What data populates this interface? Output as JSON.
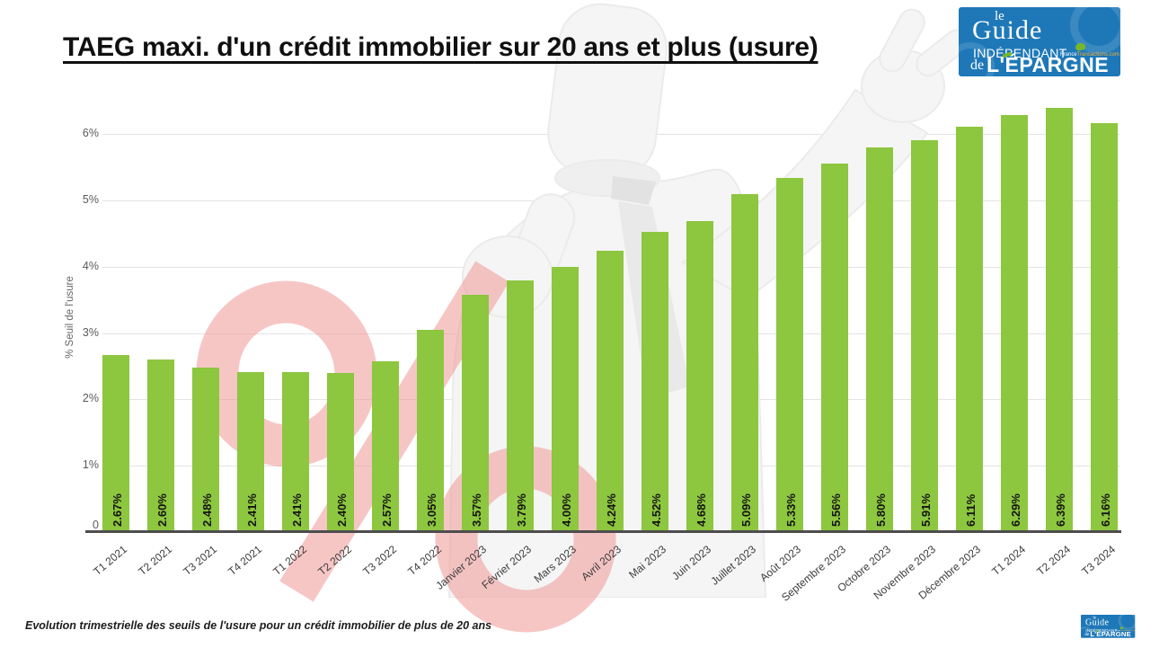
{
  "page": {
    "title": "TAEG maxi. d'un crédit immobilier sur 20 ans et plus (usure)",
    "footer_note": "Evolution trimestrielle des seuils de l'usure pour un crédit immobilier de plus de 20 ans"
  },
  "logo": {
    "le": "le",
    "guide": "Guide",
    "independant": "INDÉPENDANT",
    "site_white": "France",
    "site_orange": "Transactions.com",
    "de": "de",
    "epargne": "L'ÉPARGNE"
  },
  "chart_data": {
    "type": "bar",
    "title": "TAEG maxi. d'un crédit immobilier sur 20 ans et plus (usure)",
    "xlabel": "",
    "ylabel": "% Seuil de l'usure",
    "categories": [
      "T1 2021",
      "T2 2021",
      "T3 2021",
      "T4 2021",
      "T1 2022",
      "T2 2022",
      "T3 2022",
      "T4 2022",
      "Janvier 2023",
      "Février 2023",
      "Mars 2023",
      "Avril 2023",
      "Mai 2023",
      "Juin 2023",
      "Juillet 2023",
      "Août 2023",
      "Septembre 2023",
      "Octobre 2023",
      "Novembre 2023",
      "Décembre 2023",
      "T1 2024",
      "T2 2024",
      "T3 2024"
    ],
    "values": [
      2.67,
      2.6,
      2.48,
      2.41,
      2.41,
      2.4,
      2.57,
      3.05,
      3.57,
      3.79,
      4.0,
      4.24,
      4.52,
      4.68,
      5.09,
      5.33,
      5.56,
      5.8,
      5.91,
      6.11,
      6.29,
      6.39,
      6.16
    ],
    "bar_labels": [
      "2.67%",
      "2.60%",
      "2.48%",
      "2.41%",
      "2.41%",
      "2.40%",
      "2.57%",
      "3.05%",
      "3.57%",
      "3.79%",
      "4.00%",
      "4.24%",
      "4.52%",
      "4.68%",
      "5.09%",
      "5.33%",
      "5.56%",
      "5.80%",
      "5.91%",
      "6.11%",
      "6.29%",
      "6.39%",
      "6.16%"
    ],
    "y_ticks": [
      "0",
      "1%",
      "2%",
      "3%",
      "4%",
      "5%",
      "6%"
    ],
    "ylim": [
      0,
      6.5
    ],
    "grid": true,
    "legend": false,
    "bar_color": "#8dc63f",
    "grid_color": "#e3e3e3",
    "axis_color": "#4d4d4d",
    "watermark_color": "#f2c5c5",
    "brand_blue": "#1e78b8",
    "brand_green": "#76b82a"
  }
}
